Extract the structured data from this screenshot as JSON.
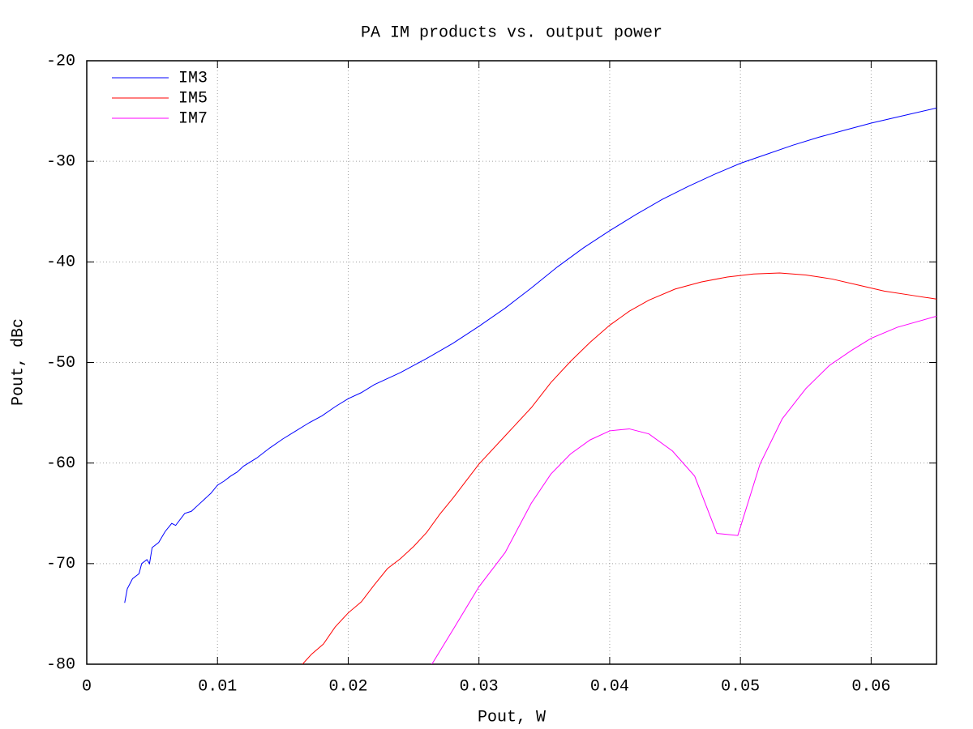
{
  "chart_data": {
    "type": "line",
    "title": "PA IM products vs. output power",
    "xlabel": "Pout, W",
    "ylabel": "Pout, dBc",
    "xlim": [
      0,
      0.065
    ],
    "ylim": [
      -80,
      -20
    ],
    "xticks": [
      0,
      0.01,
      0.02,
      0.03,
      0.04,
      0.05,
      0.06
    ],
    "yticks": [
      -80,
      -70,
      -60,
      -50,
      -40,
      -30,
      -20
    ],
    "grid": true,
    "legend": "top-left",
    "series": [
      {
        "name": "IM3",
        "color": "#0000ff",
        "x": [
          0.0029,
          0.0031,
          0.0035,
          0.004,
          0.0042,
          0.0046,
          0.0048,
          0.005,
          0.0055,
          0.006,
          0.0065,
          0.0068,
          0.0075,
          0.008,
          0.0085,
          0.009,
          0.0095,
          0.01,
          0.0105,
          0.011,
          0.0115,
          0.012,
          0.013,
          0.014,
          0.015,
          0.016,
          0.017,
          0.018,
          0.019,
          0.02,
          0.021,
          0.022,
          0.024,
          0.026,
          0.028,
          0.03,
          0.032,
          0.034,
          0.036,
          0.038,
          0.04,
          0.042,
          0.044,
          0.046,
          0.048,
          0.05,
          0.052,
          0.054,
          0.056,
          0.058,
          0.06,
          0.062,
          0.065
        ],
        "values": [
          -73.9,
          -72.5,
          -71.5,
          -71.0,
          -70.0,
          -69.6,
          -70.0,
          -68.4,
          -67.9,
          -66.8,
          -66.0,
          -66.2,
          -65.0,
          -64.8,
          -64.2,
          -63.6,
          -63.0,
          -62.2,
          -61.8,
          -61.3,
          -60.9,
          -60.3,
          -59.5,
          -58.5,
          -57.6,
          -56.8,
          -56.0,
          -55.3,
          -54.4,
          -53.6,
          -53.0,
          -52.2,
          -51.0,
          -49.6,
          -48.1,
          -46.4,
          -44.6,
          -42.6,
          -40.5,
          -38.6,
          -36.9,
          -35.3,
          -33.8,
          -32.5,
          -31.3,
          -30.2,
          -29.3,
          -28.4,
          -27.6,
          -26.9,
          -26.2,
          -25.6,
          -24.7
        ]
      },
      {
        "name": "IM5",
        "color": "#ff0000",
        "x": [
          0.0165,
          0.0172,
          0.0181,
          0.019,
          0.02,
          0.021,
          0.022,
          0.023,
          0.024,
          0.025,
          0.026,
          0.027,
          0.028,
          0.029,
          0.03,
          0.032,
          0.034,
          0.0355,
          0.037,
          0.0385,
          0.04,
          0.0415,
          0.043,
          0.045,
          0.047,
          0.049,
          0.051,
          0.053,
          0.055,
          0.057,
          0.059,
          0.061,
          0.063,
          0.065
        ],
        "values": [
          -80,
          -79,
          -78,
          -76.3,
          -74.9,
          -73.8,
          -72.1,
          -70.5,
          -69.5,
          -68.3,
          -66.9,
          -65.1,
          -63.5,
          -61.8,
          -60.1,
          -57.3,
          -54.5,
          -52.0,
          -49.9,
          -48.0,
          -46.3,
          -44.9,
          -43.8,
          -42.7,
          -42.0,
          -41.5,
          -41.2,
          -41.1,
          -41.3,
          -41.7,
          -42.3,
          -42.9,
          -43.3,
          -43.7
        ]
      },
      {
        "name": "IM7",
        "color": "#ff00ff",
        "x": [
          0.0264,
          0.028,
          0.03,
          0.032,
          0.034,
          0.0355,
          0.037,
          0.0385,
          0.04,
          0.0415,
          0.043,
          0.0448,
          0.0465,
          0.0482,
          0.0498,
          0.0515,
          0.0532,
          0.055,
          0.0568,
          0.0585,
          0.06,
          0.062,
          0.065
        ],
        "values": [
          -80,
          -76.6,
          -72.3,
          -68.9,
          -64.0,
          -61.1,
          -59.1,
          -57.7,
          -56.8,
          -56.6,
          -57.1,
          -58.8,
          -61.3,
          -67.0,
          -67.2,
          -60.1,
          -55.6,
          -52.6,
          -50.3,
          -48.8,
          -47.6,
          -46.5,
          -45.4
        ]
      }
    ]
  }
}
